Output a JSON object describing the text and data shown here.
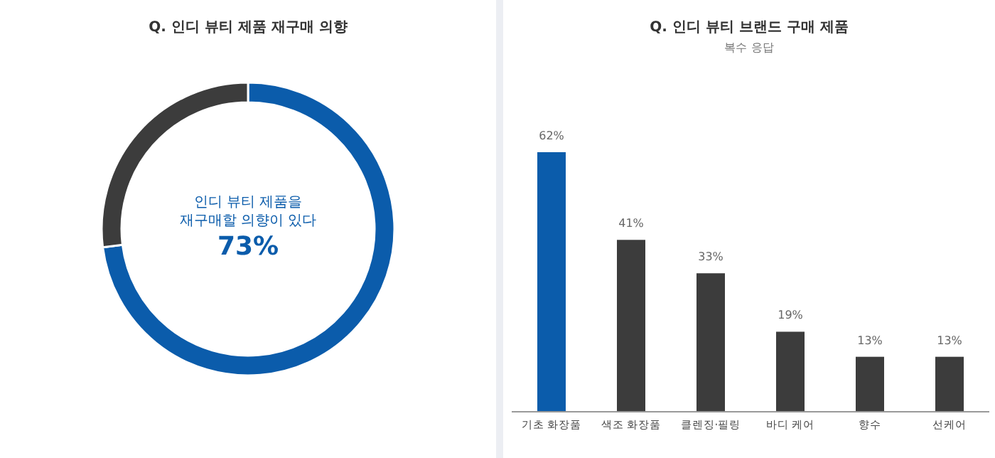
{
  "chart_data": [
    {
      "type": "donut",
      "title": "Q. 인디 뷰티 제품 재구매 의향",
      "categories": [
        "인디 뷰티 제품을 재구매할 의향이 있다",
        null
      ],
      "values": [
        73,
        27
      ],
      "colors": [
        "#0b5cab",
        "#3c3c3c"
      ],
      "value_labels": [
        "73%",
        null
      ]
    },
    {
      "type": "bar",
      "title": "Q. 인디 뷰티 브랜드 구매 제품",
      "subtitle": "복수 응답",
      "categories": [
        "기초 화장품",
        "색조 화장품",
        "클렌징·필링",
        "바디 케어",
        "향수",
        "선케어"
      ],
      "values": [
        62,
        41,
        33,
        19,
        13,
        13
      ],
      "colors": [
        "#0b5cab",
        "#3c3c3c",
        "#3c3c3c",
        "#3c3c3c",
        "#3c3c3c",
        "#3c3c3c"
      ],
      "value_labels": [
        "62%",
        "41%",
        "33%",
        "19%",
        "13%",
        "13%"
      ]
    }
  ]
}
